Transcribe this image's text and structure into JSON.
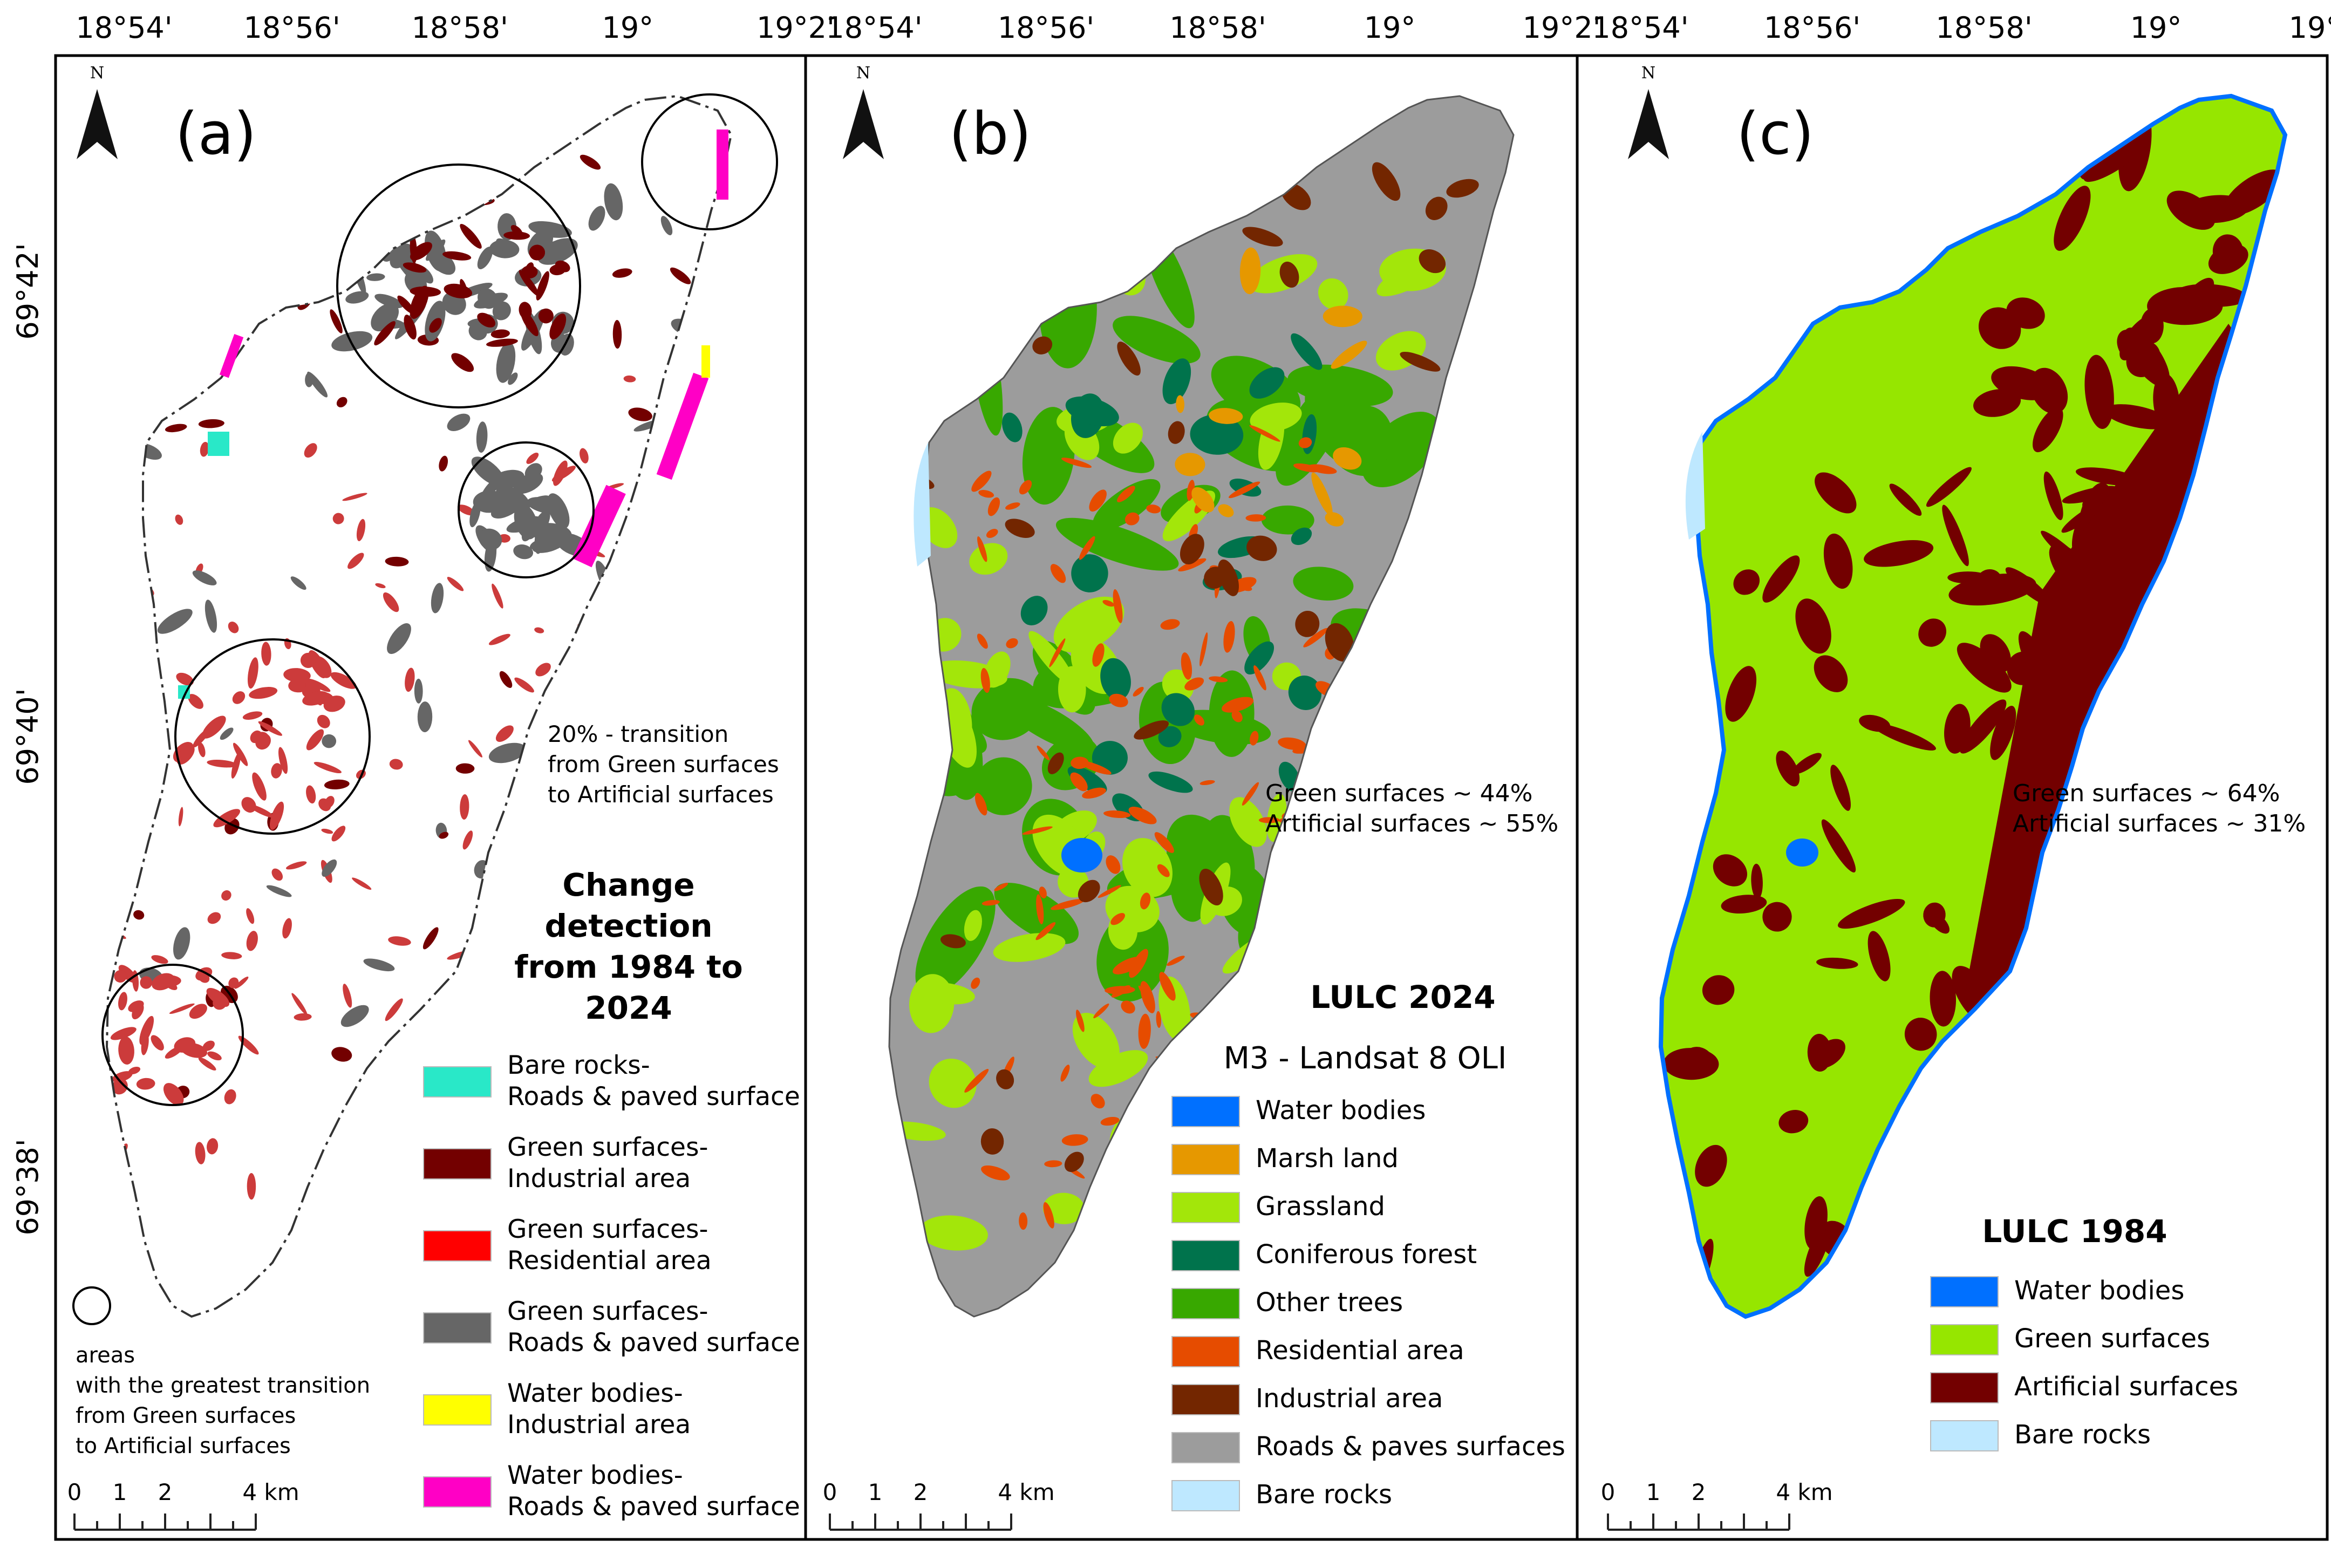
{
  "top_ticks": [
    "18°54'",
    "18°56'",
    "18°58'",
    "19°",
    "19°2'"
  ],
  "left_ticks": [
    "69°42'",
    "69°40'",
    "69°38'"
  ],
  "north_letter": "N",
  "scale": {
    "labels": [
      "0",
      "1",
      "2",
      "4 km"
    ]
  },
  "panels": [
    {
      "id": "a",
      "letter": "(a)",
      "stats": [
        "20% - transition",
        "from Green surfaces",
        "to Artificial surfaces"
      ],
      "title": [
        "Change",
        "detection",
        "from 1984 to",
        "2024"
      ],
      "subtitle": "",
      "legend": [
        {
          "lines": [
            "Bare rocks-",
            "Roads & paved surface"
          ],
          "color": "#29e8c8"
        },
        {
          "lines": [
            "Green surfaces-",
            "Industrial area"
          ],
          "color": "#730000"
        },
        {
          "lines": [
            "Green surfaces-",
            "Residential area"
          ],
          "color": "#ff0000"
        },
        {
          "lines": [
            "Green surfaces-",
            "Roads & paved surface"
          ],
          "color": "#666666"
        },
        {
          "lines": [
            "Water bodies-",
            "Industrial area"
          ],
          "color": "#ffff00"
        },
        {
          "lines": [
            "Water bodies-",
            "Roads & paved surface"
          ],
          "color": "#ff00c5"
        }
      ],
      "circle_note": [
        "areas",
        "with the greatest transition",
        "from Green surfaces",
        "to Artificial surfaces"
      ]
    },
    {
      "id": "b",
      "letter": "(b)",
      "stats": [
        "Green surfaces ~ 44%",
        "Artificial surfaces ~ 55%"
      ],
      "title": [
        "LULC 2024"
      ],
      "subtitle": "M3 - Landsat 8 OLI",
      "legend": [
        {
          "lines": [
            "Water bodies"
          ],
          "color": "#0070ff"
        },
        {
          "lines": [
            "Marsh land"
          ],
          "color": "#e69800"
        },
        {
          "lines": [
            "Grassland"
          ],
          "color": "#a3e60a"
        },
        {
          "lines": [
            "Coniferous forest"
          ],
          "color": "#00734c"
        },
        {
          "lines": [
            "Other trees"
          ],
          "color": "#38a800"
        },
        {
          "lines": [
            "Residential area"
          ],
          "color": "#e64c00"
        },
        {
          "lines": [
            "Industrial area"
          ],
          "color": "#732600"
        },
        {
          "lines": [
            "Roads & paves surfaces"
          ],
          "color": "#9c9c9c"
        },
        {
          "lines": [
            "Bare rocks"
          ],
          "color": "#bee8ff"
        }
      ]
    },
    {
      "id": "c",
      "letter": "(c)",
      "stats": [
        "Green surfaces ~ 64%",
        "Artificial surfaces ~ 31%"
      ],
      "title": [
        "LULC 1984"
      ],
      "subtitle": "",
      "legend": [
        {
          "lines": [
            "Water bodies"
          ],
          "color": "#0070ff"
        },
        {
          "lines": [
            "Green surfaces"
          ],
          "color": "#96e600"
        },
        {
          "lines": [
            "Artificial surfaces"
          ],
          "color": "#730000"
        },
        {
          "lines": [
            "Bare rocks"
          ],
          "color": "#bee8ff"
        }
      ]
    }
  ],
  "colors": {
    "a_gray": "#666666",
    "a_dark": "#730000",
    "a_red": "#cc3b3b",
    "a_cyan": "#29e8c8",
    "a_pink": "#ff00c5",
    "a_yellow": "#ffff00",
    "b_gray": "#9c9c9c",
    "b_green": "#38a800",
    "b_grass": "#a3e60a",
    "b_conifer": "#00734c",
    "b_resid": "#e64c00",
    "b_indus": "#732600",
    "b_marsh": "#e69800",
    "b_water": "#0070ff",
    "b_rock": "#bee8ff",
    "c_green": "#96e600",
    "c_dark": "#730000",
    "c_water": "#0070ff",
    "c_rock": "#bee8ff"
  }
}
